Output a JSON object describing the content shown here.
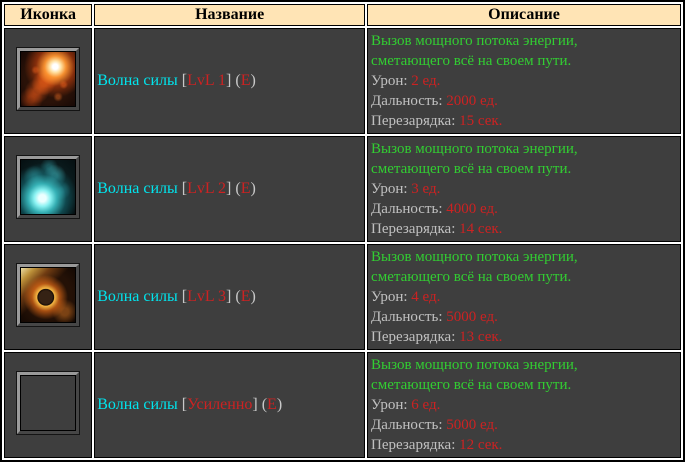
{
  "table": {
    "headers": [
      "Иконка",
      "Название",
      "Описание"
    ]
  },
  "punctuation": {
    "open_bracket": "[",
    "close_bracket": "]",
    "open_paren": "(",
    "close_paren": ")"
  },
  "description": {
    "line1": "Вызов мощного потока энергии,",
    "line2": "сметающего всё на своем пути."
  },
  "labels": {
    "damage": "Урон:",
    "range": "Дальность:",
    "cooldown": "Перезарядка:"
  },
  "colors": {
    "header_bg": "#FFE4B5",
    "cell_bg": "#3E3E3E",
    "name_cyan": "#00E5EE",
    "tag_red": "#CC2222",
    "punct_gray": "#C8C8C8",
    "desc_green": "#32CD32",
    "label_gray": "#C0C0C0",
    "value_red": "#CC2222",
    "border_black": "#000000"
  },
  "rows": [
    {
      "icon": "fire-comet-icon",
      "name": "Волна силы",
      "tag": "LvL 1",
      "hotkey": "Е",
      "damage": "2 ед.",
      "range": "2000 ед.",
      "cooldown": "15 сек."
    },
    {
      "icon": "teal-energy-icon",
      "name": "Волна силы",
      "tag": "LvL 2",
      "hotkey": "Е",
      "damage": "3 ед.",
      "range": "4000 ед.",
      "cooldown": "14 сек."
    },
    {
      "icon": "meteor-icon",
      "name": "Волна силы",
      "tag": "LvL 3",
      "hotkey": "Е",
      "damage": "4 ед.",
      "range": "5000 ед.",
      "cooldown": "13 сек."
    },
    {
      "icon": "fire-phoenix-icon",
      "name": "Волна силы",
      "tag": "Усиленно",
      "hotkey": "Е",
      "damage": "6 ед.",
      "range": "5000 ед.",
      "cooldown": "12 сек."
    }
  ]
}
